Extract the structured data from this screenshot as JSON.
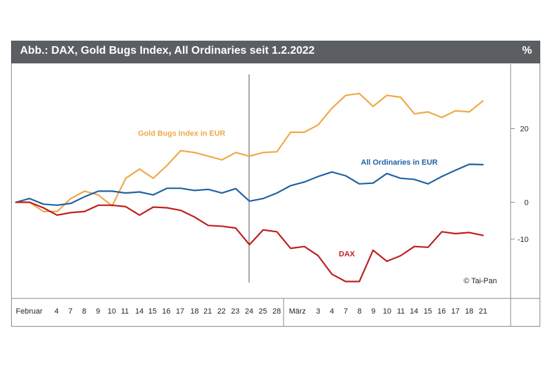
{
  "header": {
    "title": "Abb.: DAX, Gold Bugs Index, All Ordinaries seit 1.2.2022",
    "unit": "%"
  },
  "credit": "© Tai-Pan",
  "colors": {
    "gold": "#f0a848",
    "ords": "#1f62a4",
    "dax": "#c01e1e"
  },
  "chart_data": {
    "type": "line",
    "title": "Abb.: DAX, Gold Bugs Index, All Ordinaries seit 1.2.2022",
    "ylabel": "%",
    "ylim": [
      -22,
      34
    ],
    "yticks": [
      20,
      0,
      -10
    ],
    "x_tick_labels": [
      "Februar",
      "4",
      "7",
      "8",
      "9",
      "10",
      "11",
      "14",
      "15",
      "16",
      "17",
      "18",
      "21",
      "22",
      "23",
      "24",
      "25",
      "28",
      "März",
      "3",
      "4",
      "7",
      "8",
      "9",
      "10",
      "11",
      "14",
      "15",
      "16",
      "17",
      "18",
      "21"
    ],
    "series": [
      {
        "name": "Gold Bugs Index in EUR",
        "color": "#f0a848",
        "values": [
          0,
          0,
          -2.5,
          -2.5,
          1,
          3,
          2,
          -1,
          6.5,
          9,
          6.5,
          10,
          14,
          13.5,
          12.5,
          11.5,
          13.5,
          12.5,
          13.5,
          13.7,
          19,
          19,
          21,
          25.5,
          29,
          29.5,
          26,
          29,
          28.5,
          24,
          24.5,
          23,
          24.8,
          24.5,
          27.5
        ]
      },
      {
        "name": "All Ordinaries in EUR",
        "color": "#1f62a4",
        "values": [
          0,
          1,
          -0.5,
          -0.8,
          -0.3,
          1.5,
          3,
          3,
          2.5,
          2.8,
          2,
          3.8,
          3.8,
          3.2,
          3.5,
          2.5,
          3.7,
          0.3,
          1,
          2.5,
          4.5,
          5.5,
          7,
          8.2,
          7.2,
          5,
          5.2,
          7.8,
          6.5,
          6.2,
          5,
          7,
          8.7,
          10.3,
          10.2
        ]
      },
      {
        "name": "DAX",
        "color": "#c01e1e",
        "values": [
          0,
          0,
          -1.5,
          -3.5,
          -2.8,
          -2.5,
          -0.8,
          -0.8,
          -1.2,
          -3.5,
          -1.3,
          -1.5,
          -2.2,
          -4,
          -6.3,
          -6.5,
          -7,
          -11.5,
          -7.5,
          -8,
          -12.5,
          -12,
          -14.5,
          -19.5,
          -21.5,
          -21.5,
          -13,
          -16,
          -14.5,
          -12,
          -12.2,
          -8,
          -8.5,
          -8.2,
          -9
        ]
      }
    ],
    "annotations": [
      "© Tai-Pan"
    ]
  }
}
